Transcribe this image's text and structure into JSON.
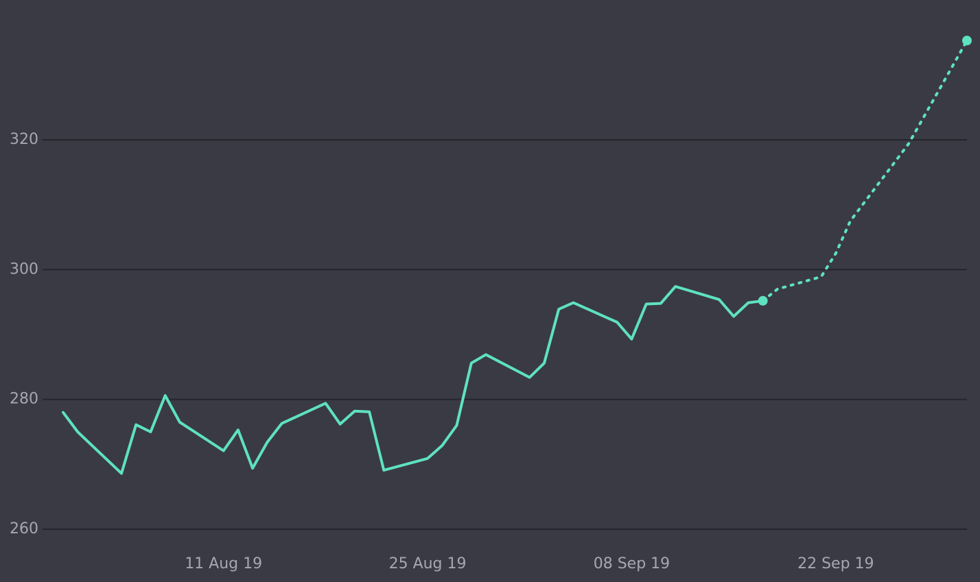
{
  "chart_data": {
    "type": "line",
    "title": "",
    "xlabel": "",
    "ylabel": "",
    "x_range": [
      "2019-07-31",
      "2019-10-01"
    ],
    "ylim": [
      260,
      335
    ],
    "grid": true,
    "legend": "none",
    "y_ticks": [
      {
        "value": 260,
        "label": "260"
      },
      {
        "value": 280,
        "label": "280"
      },
      {
        "value": 300,
        "label": "300"
      },
      {
        "value": 320,
        "label": "320"
      }
    ],
    "x_ticks": [
      {
        "date": "2019-08-11",
        "label": "11 Aug 19"
      },
      {
        "date": "2019-08-25",
        "label": "25 Aug 19"
      },
      {
        "date": "2019-09-08",
        "label": "08 Sep 19"
      },
      {
        "date": "2019-09-22",
        "label": "22 Sep 19"
      }
    ],
    "series": [
      {
        "style": "solid",
        "color": "#5ee2bf",
        "points": [
          {
            "x": "2019-07-31",
            "y": 278.0
          },
          {
            "x": "2019-08-01",
            "y": 275.0
          },
          {
            "x": "2019-08-04",
            "y": 268.6
          },
          {
            "x": "2019-08-05",
            "y": 276.1
          },
          {
            "x": "2019-08-06",
            "y": 275.0
          },
          {
            "x": "2019-08-07",
            "y": 280.6
          },
          {
            "x": "2019-08-08",
            "y": 276.5
          },
          {
            "x": "2019-08-11",
            "y": 272.1
          },
          {
            "x": "2019-08-12",
            "y": 275.3
          },
          {
            "x": "2019-08-13",
            "y": 269.4
          },
          {
            "x": "2019-08-14",
            "y": 273.4
          },
          {
            "x": "2019-08-15",
            "y": 276.3
          },
          {
            "x": "2019-08-18",
            "y": 279.4
          },
          {
            "x": "2019-08-19",
            "y": 276.2
          },
          {
            "x": "2019-08-20",
            "y": 278.2
          },
          {
            "x": "2019-08-21",
            "y": 278.1
          },
          {
            "x": "2019-08-22",
            "y": 269.1
          },
          {
            "x": "2019-08-25",
            "y": 270.9
          },
          {
            "x": "2019-08-26",
            "y": 272.9
          },
          {
            "x": "2019-08-27",
            "y": 276.0
          },
          {
            "x": "2019-08-28",
            "y": 285.6
          },
          {
            "x": "2019-08-29",
            "y": 286.9
          },
          {
            "x": "2019-09-01",
            "y": 283.4
          },
          {
            "x": "2019-09-02",
            "y": 285.6
          },
          {
            "x": "2019-09-03",
            "y": 293.9
          },
          {
            "x": "2019-09-04",
            "y": 294.9
          },
          {
            "x": "2019-09-07",
            "y": 291.9
          },
          {
            "x": "2019-09-08",
            "y": 289.3
          },
          {
            "x": "2019-09-09",
            "y": 294.7
          },
          {
            "x": "2019-09-10",
            "y": 294.8
          },
          {
            "x": "2019-09-11",
            "y": 297.4
          },
          {
            "x": "2019-09-14",
            "y": 295.4
          },
          {
            "x": "2019-09-15",
            "y": 292.8
          },
          {
            "x": "2019-09-16",
            "y": 294.9
          },
          {
            "x": "2019-09-17",
            "y": 295.2
          }
        ]
      },
      {
        "style": "dotted",
        "color": "#5ee2bf",
        "points": [
          {
            "x": "2019-09-17",
            "y": 295.2
          },
          {
            "x": "2019-09-18",
            "y": 297.0
          },
          {
            "x": "2019-09-21",
            "y": 298.9
          },
          {
            "x": "2019-09-22",
            "y": 302.5
          },
          {
            "x": "2019-09-23",
            "y": 307.5
          },
          {
            "x": "2019-09-27",
            "y": 319.4
          },
          {
            "x": "2019-10-01",
            "y": 335.3
          }
        ]
      }
    ]
  }
}
